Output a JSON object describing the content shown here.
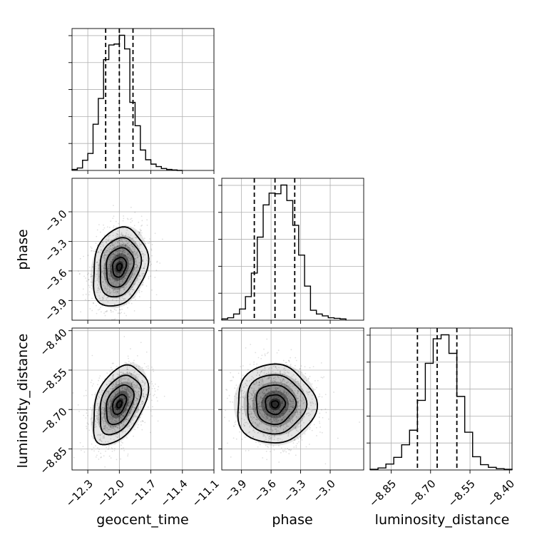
{
  "chart_data": {
    "type": "corner",
    "parameters": [
      "geocent_time",
      "phase",
      "luminosity_distance"
    ],
    "axes": {
      "geocent_time": {
        "range": [
          -12.45,
          -11.1
        ],
        "ticks": [
          -12.3,
          -12.0,
          -11.7,
          -11.4,
          -11.1
        ],
        "tick_labels": [
          "−12.3",
          "−12.0",
          "−11.7",
          "−11.4",
          "−11.1"
        ]
      },
      "phase": {
        "range": [
          -4.1,
          -2.66
        ],
        "ticks": [
          -3.9,
          -3.6,
          -3.3,
          -3.0
        ],
        "tick_labels": [
          "−3.9",
          "−3.6",
          "−3.3",
          "−3.0"
        ]
      },
      "luminosity_distance": {
        "range": [
          -8.93,
          -8.39
        ],
        "ticks": [
          -8.85,
          -8.7,
          -8.55,
          -8.4
        ],
        "tick_labels": [
          "−8.85",
          "−8.70",
          "−8.55",
          "−8.40"
        ]
      }
    },
    "marginals": [
      {
        "parameter": "geocent_time",
        "quantiles": [
          -12.13,
          -12.0,
          -11.87
        ],
        "bins": [
          -12.45,
          -12.4,
          -12.35,
          -12.3,
          -12.25,
          -12.2,
          -12.15,
          -12.1,
          -12.05,
          -12.0,
          -11.95,
          -11.9,
          -11.85,
          -11.8,
          -11.75,
          -11.7,
          -11.65,
          -11.6,
          -11.55,
          -11.5,
          -11.45,
          -11.4
        ],
        "counts": [
          2,
          5,
          21,
          35,
          95,
          148,
          228,
          258,
          260,
          278,
          250,
          140,
          92,
          42,
          22,
          13,
          8,
          4,
          2,
          1,
          0
        ]
      },
      {
        "parameter": "phase",
        "quantiles": [
          -3.77,
          -3.56,
          -3.36
        ],
        "bins": [
          -4.1,
          -4.04,
          -3.98,
          -3.92,
          -3.86,
          -3.8,
          -3.74,
          -3.68,
          -3.62,
          -3.56,
          -3.5,
          -3.44,
          -3.38,
          -3.32,
          -3.26,
          -3.2,
          -3.14,
          -3.08,
          -3.02,
          -2.96,
          -2.9,
          -2.84
        ],
        "counts": [
          2,
          4,
          10,
          18,
          38,
          76,
          134,
          186,
          205,
          204,
          218,
          193,
          153,
          105,
          55,
          16,
          10,
          7,
          4,
          3,
          2
        ]
      },
      {
        "parameter": "luminosity_distance",
        "quantiles": [
          -8.75,
          -8.675,
          -8.6
        ],
        "bins": [
          -8.93,
          -8.9,
          -8.87,
          -8.84,
          -8.81,
          -8.78,
          -8.75,
          -8.72,
          -8.69,
          -8.66,
          -8.63,
          -8.6,
          -8.57,
          -8.54,
          -8.51,
          -8.48,
          -8.45,
          -8.42,
          -8.39
        ],
        "counts": [
          1,
          3,
          9,
          19,
          38,
          60,
          105,
          161,
          198,
          204,
          176,
          111,
          57,
          20,
          8,
          4,
          2,
          1
        ]
      }
    ],
    "joint": [
      {
        "x": "geocent_time",
        "y": "phase",
        "center": [
          -12.0,
          -3.56
        ],
        "sigma": [
          0.13,
          0.2
        ],
        "correlation": 0.2
      },
      {
        "x": "geocent_time",
        "y": "luminosity_distance",
        "center": [
          -12.0,
          -8.68
        ],
        "sigma": [
          0.13,
          0.075
        ],
        "correlation": 0.4
      },
      {
        "x": "phase",
        "y": "luminosity_distance",
        "center": [
          -3.56,
          -8.68
        ],
        "sigma": [
          0.2,
          0.075
        ],
        "correlation": 0.0
      }
    ],
    "grid": true
  }
}
